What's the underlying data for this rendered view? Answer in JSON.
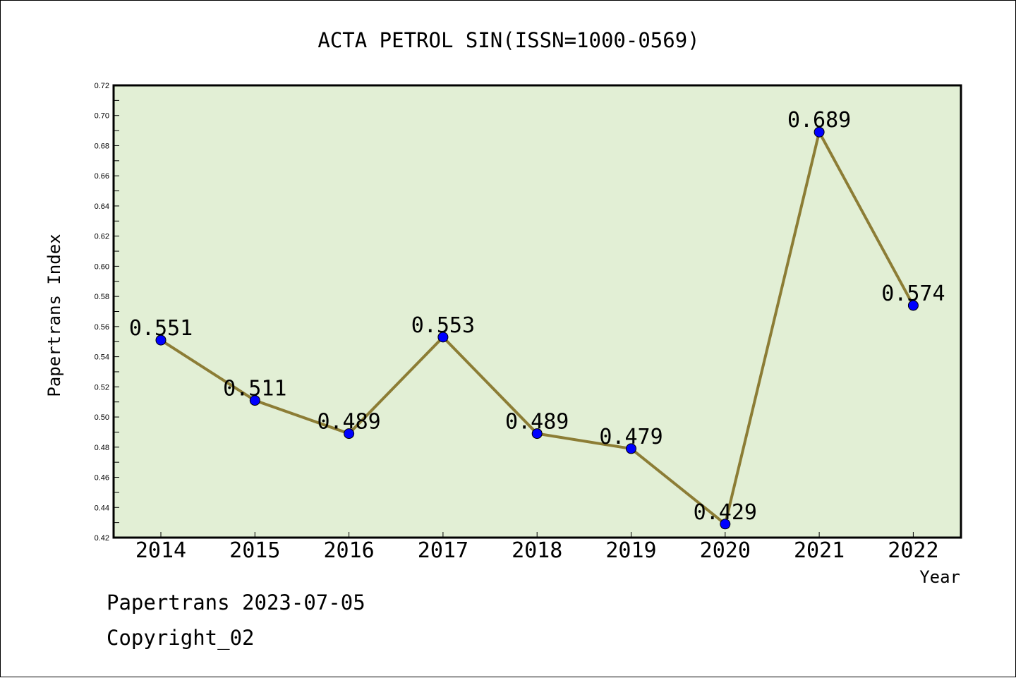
{
  "chart_data": {
    "type": "line",
    "title": "ACTA PETROL SIN(ISSN=1000-0569)",
    "xlabel": "Year",
    "ylabel": "Papertrans Index",
    "categories": [
      "2014",
      "2015",
      "2016",
      "2017",
      "2018",
      "2019",
      "2020",
      "2021",
      "2022"
    ],
    "series": [
      {
        "values": [
          0.551,
          0.511,
          0.489,
          0.553,
          0.489,
          0.479,
          0.429,
          0.689,
          0.574
        ],
        "data_labels": [
          "0.551",
          "0.511",
          "0.489",
          "0.553",
          "0.489",
          "0.479",
          "0.429",
          "0.689",
          "0.574"
        ],
        "line_color": "#8c7d35",
        "marker_color": "#0000ff"
      }
    ],
    "ylim": [
      0.42,
      0.72
    ],
    "yticks": [
      "0.42",
      "0.44",
      "0.46",
      "0.48",
      "0.50",
      "0.52",
      "0.54",
      "0.56",
      "0.58",
      "0.60",
      "0.62",
      "0.64",
      "0.66",
      "0.68",
      "0.70",
      "0.72"
    ],
    "plot_background": "#e2efd5",
    "grid": false,
    "legend": "none"
  },
  "footer": {
    "date_text": "Papertrans 2023-07-05",
    "copyright_text": "Copyright_02"
  }
}
